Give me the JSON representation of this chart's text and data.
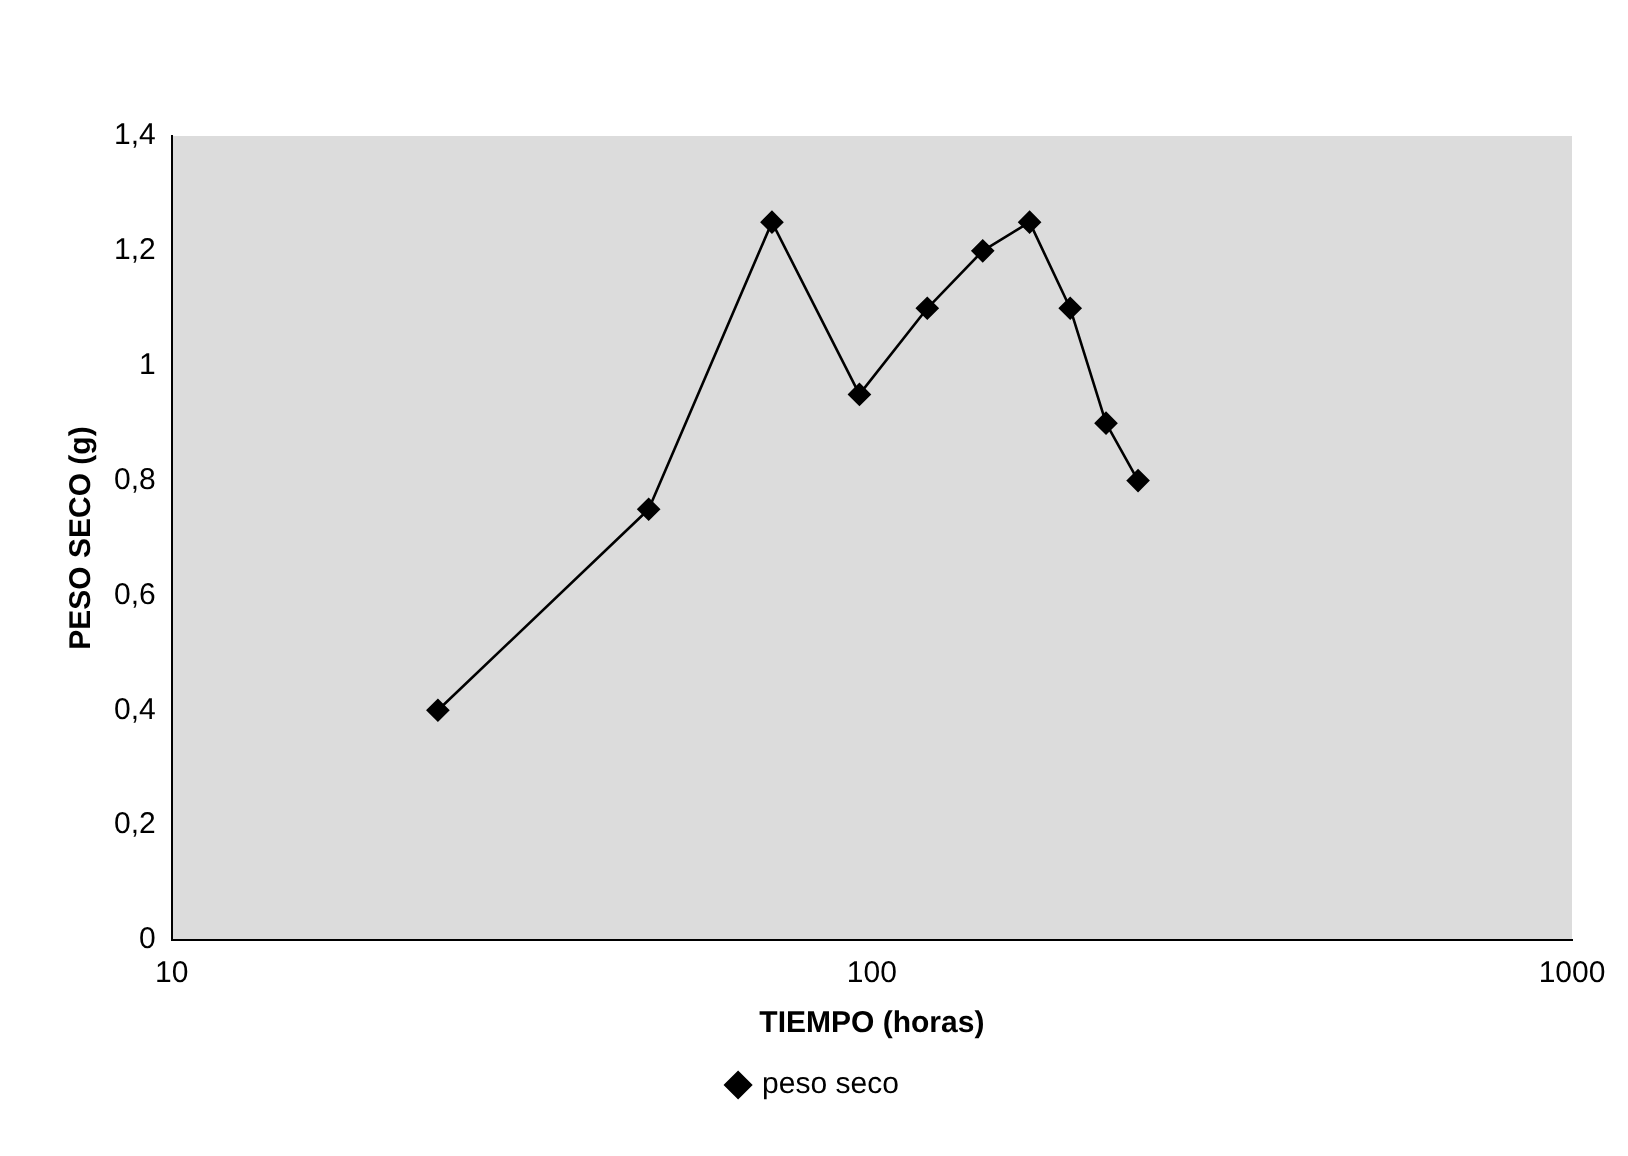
{
  "chart_data": {
    "type": "line",
    "xlabel": "TIEMPO (horas)",
    "ylabel": "PESO SECO (g)",
    "log": "x",
    "xlim": [
      10,
      1000
    ],
    "xticks": [
      10,
      100,
      1000
    ],
    "ylim": [
      0,
      1.4
    ],
    "yticks": [
      0,
      {
        "value": 0.2,
        "label": "0,2"
      },
      {
        "value": 0.4,
        "label": "0,4"
      },
      {
        "value": 0.6,
        "label": "0,6"
      },
      {
        "value": 0.8,
        "label": "0,8"
      },
      1,
      {
        "value": 1.2,
        "label": "1,2"
      },
      {
        "value": 1.4,
        "label": "1,4"
      }
    ],
    "x": [
      24,
      48,
      72,
      96,
      120,
      144,
      168,
      192,
      216,
      240
    ],
    "series": [
      {
        "name": "peso seco",
        "color": "#000000",
        "values": [
          0.4,
          0.75,
          1.25,
          0.95,
          1.1,
          1.2,
          1.25,
          1.1,
          0.9,
          0.8
        ]
      }
    ],
    "marker": "diamond",
    "line_style": "solid",
    "legend": "bottom",
    "grid": false
  }
}
